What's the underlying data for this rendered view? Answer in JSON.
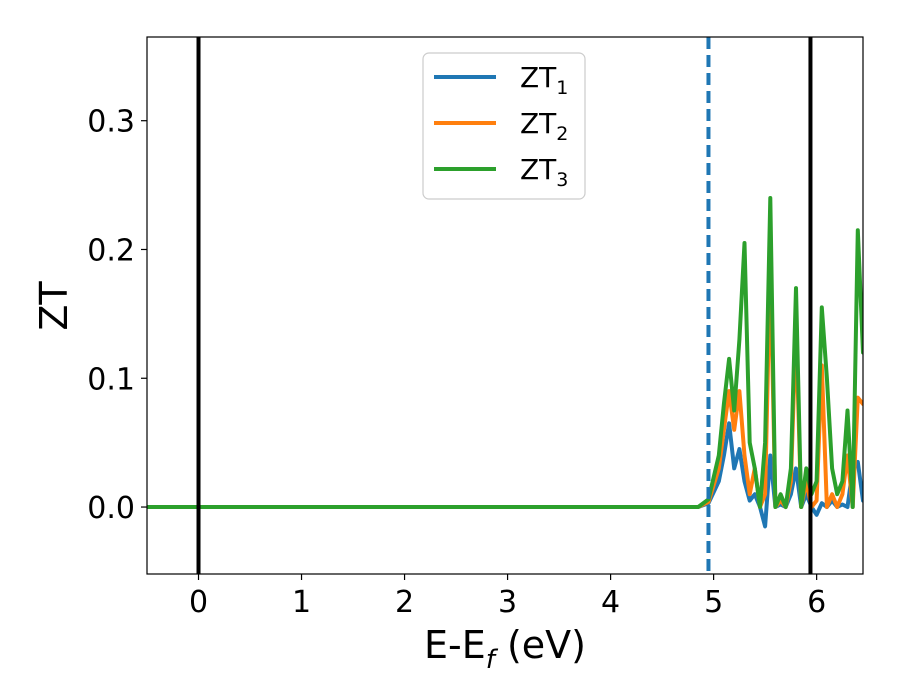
{
  "chart_data": {
    "type": "line",
    "title": "",
    "xlabel": {
      "main": "E-E",
      "sub": "f",
      "unit": " (eV)"
    },
    "ylabel": "ZT",
    "xlim": [
      -0.5,
      6.45
    ],
    "ylim": [
      -0.052,
      0.365
    ],
    "x_ticks": [
      0,
      1,
      2,
      3,
      4,
      5,
      6
    ],
    "x_tick_labels": [
      "0",
      "1",
      "2",
      "3",
      "4",
      "5",
      "6"
    ],
    "y_ticks": [
      0.0,
      0.1,
      0.2,
      0.3
    ],
    "y_tick_labels": [
      "0.0",
      "0.1",
      "0.2",
      "0.3"
    ],
    "grid": false,
    "legend_position": "top-center",
    "vertical_lines": [
      {
        "x": 0.0,
        "style": "solid",
        "color": "#000000"
      },
      {
        "x": 4.95,
        "style": "dashed",
        "color": "#1f77b4"
      },
      {
        "x": 5.94,
        "style": "solid",
        "color": "#000000"
      }
    ],
    "series": [
      {
        "name": "ZT",
        "sub": "1",
        "color": "#1f77b4",
        "x": [
          -0.5,
          4.85,
          4.95,
          5.05,
          5.1,
          5.15,
          5.2,
          5.25,
          5.3,
          5.35,
          5.4,
          5.45,
          5.5,
          5.55,
          5.6,
          5.65,
          5.7,
          5.75,
          5.8,
          5.85,
          5.9,
          5.95,
          6.0,
          6.05,
          6.1,
          6.15,
          6.2,
          6.25,
          6.3,
          6.35,
          6.4,
          6.45
        ],
        "y": [
          0.0,
          0.0,
          0.003,
          0.02,
          0.04,
          0.065,
          0.03,
          0.045,
          0.02,
          0.005,
          0.01,
          0.0,
          -0.015,
          0.04,
          0.0,
          0.002,
          0.0,
          0.01,
          0.03,
          0.0,
          0.01,
          0.0,
          -0.006,
          0.003,
          0.0,
          0.005,
          0.0,
          0.002,
          0.0,
          0.03,
          0.035,
          0.005
        ]
      },
      {
        "name": "ZT",
        "sub": "2",
        "color": "#ff7f0e",
        "x": [
          -0.5,
          4.85,
          4.95,
          5.05,
          5.1,
          5.15,
          5.2,
          5.25,
          5.3,
          5.35,
          5.4,
          5.45,
          5.5,
          5.55,
          5.6,
          5.65,
          5.7,
          5.75,
          5.8,
          5.85,
          5.9,
          5.95,
          6.0,
          6.05,
          6.1,
          6.15,
          6.2,
          6.25,
          6.3,
          6.35,
          6.4,
          6.45
        ],
        "y": [
          0.0,
          0.0,
          0.004,
          0.03,
          0.06,
          0.09,
          0.06,
          0.09,
          0.04,
          0.01,
          0.03,
          0.0,
          0.01,
          0.19,
          0.0,
          0.005,
          0.0,
          0.02,
          0.14,
          0.0,
          0.02,
          0.0,
          0.005,
          0.11,
          0.0,
          0.01,
          0.0,
          0.01,
          0.04,
          0.0,
          0.085,
          0.08
        ]
      },
      {
        "name": "ZT",
        "sub": "3",
        "color": "#2ca02c",
        "x": [
          -0.5,
          4.85,
          4.95,
          5.05,
          5.1,
          5.15,
          5.2,
          5.25,
          5.3,
          5.35,
          5.4,
          5.45,
          5.5,
          5.55,
          5.6,
          5.65,
          5.7,
          5.75,
          5.8,
          5.85,
          5.9,
          5.95,
          6.0,
          6.05,
          6.1,
          6.15,
          6.2,
          6.25,
          6.3,
          6.35,
          6.4,
          6.45
        ],
        "y": [
          0.0,
          0.0,
          0.006,
          0.04,
          0.08,
          0.115,
          0.075,
          0.13,
          0.205,
          0.05,
          0.03,
          0.0,
          0.05,
          0.24,
          0.0,
          0.01,
          0.0,
          0.03,
          0.17,
          0.0,
          0.03,
          0.01,
          0.02,
          0.155,
          0.1,
          0.03,
          0.01,
          0.02,
          0.075,
          0.0,
          0.215,
          0.12
        ]
      }
    ]
  }
}
